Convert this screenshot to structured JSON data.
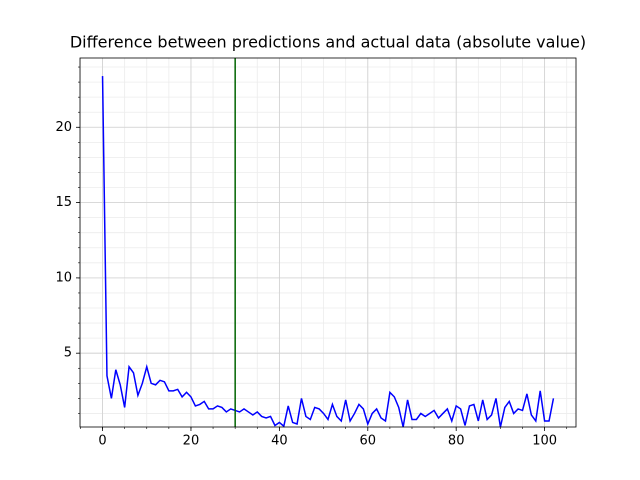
{
  "chart_data": {
    "type": "line",
    "title": "Difference between predictions and actual data (absolute value)",
    "x": [
      0,
      1,
      2,
      3,
      4,
      5,
      6,
      7,
      8,
      9,
      10,
      11,
      12,
      13,
      14,
      15,
      16,
      17,
      18,
      19,
      20,
      21,
      22,
      23,
      24,
      25,
      26,
      27,
      28,
      29,
      30,
      31,
      32,
      33,
      34,
      35,
      36,
      37,
      38,
      39,
      40,
      41,
      42,
      43,
      44,
      45,
      46,
      47,
      48,
      49,
      50,
      51,
      52,
      53,
      54,
      55,
      56,
      57,
      58,
      59,
      60,
      61,
      62,
      63,
      64,
      65,
      66,
      67,
      68,
      69,
      70,
      71,
      72,
      73,
      74,
      75,
      76,
      77,
      78,
      79,
      80,
      81,
      82,
      83,
      84,
      85,
      86,
      87,
      88,
      89,
      90,
      91,
      92,
      93,
      94,
      95,
      96,
      97,
      98,
      99,
      100,
      101,
      102
    ],
    "series": [
      {
        "color": "#0000ff",
        "values": [
          23.4,
          3.5,
          2.0,
          3.9,
          2.9,
          1.4,
          4.1,
          3.7,
          2.2,
          3.0,
          4.1,
          3.0,
          2.9,
          3.2,
          3.1,
          2.5,
          2.5,
          2.6,
          2.1,
          2.4,
          2.1,
          1.5,
          1.6,
          1.8,
          1.3,
          1.3,
          1.5,
          1.4,
          1.1,
          1.3,
          1.2,
          1.1,
          1.3,
          1.1,
          0.9,
          1.1,
          0.8,
          0.7,
          0.8,
          0.2,
          0.4,
          0.15,
          1.5,
          0.4,
          0.3,
          2.0,
          0.8,
          0.6,
          1.4,
          1.3,
          1.0,
          0.6,
          1.6,
          0.8,
          0.5,
          1.9,
          0.5,
          1.0,
          1.6,
          1.3,
          0.3,
          1.0,
          1.3,
          0.7,
          0.5,
          2.4,
          2.1,
          1.4,
          0.1,
          1.9,
          0.6,
          0.6,
          1.0,
          0.8,
          1.0,
          1.2,
          0.7,
          1.0,
          1.3,
          0.5,
          1.5,
          1.3,
          0.2,
          1.5,
          1.6,
          0.5,
          1.9,
          0.6,
          0.9,
          2.0,
          0.1,
          1.4,
          1.8,
          1.0,
          1.3,
          1.2,
          2.3,
          0.9,
          0.5,
          2.5,
          0.5,
          0.5,
          2.0
        ]
      }
    ],
    "vline": {
      "x": 30,
      "color": "#006400"
    },
    "xlim": [
      -5.1,
      107.1
    ],
    "ylim": [
      0.1,
      24.6
    ],
    "xticks": [
      0,
      20,
      40,
      60,
      80,
      100
    ],
    "yticks": [
      5,
      10,
      15,
      20
    ],
    "grid": true,
    "minor_grid": true
  }
}
